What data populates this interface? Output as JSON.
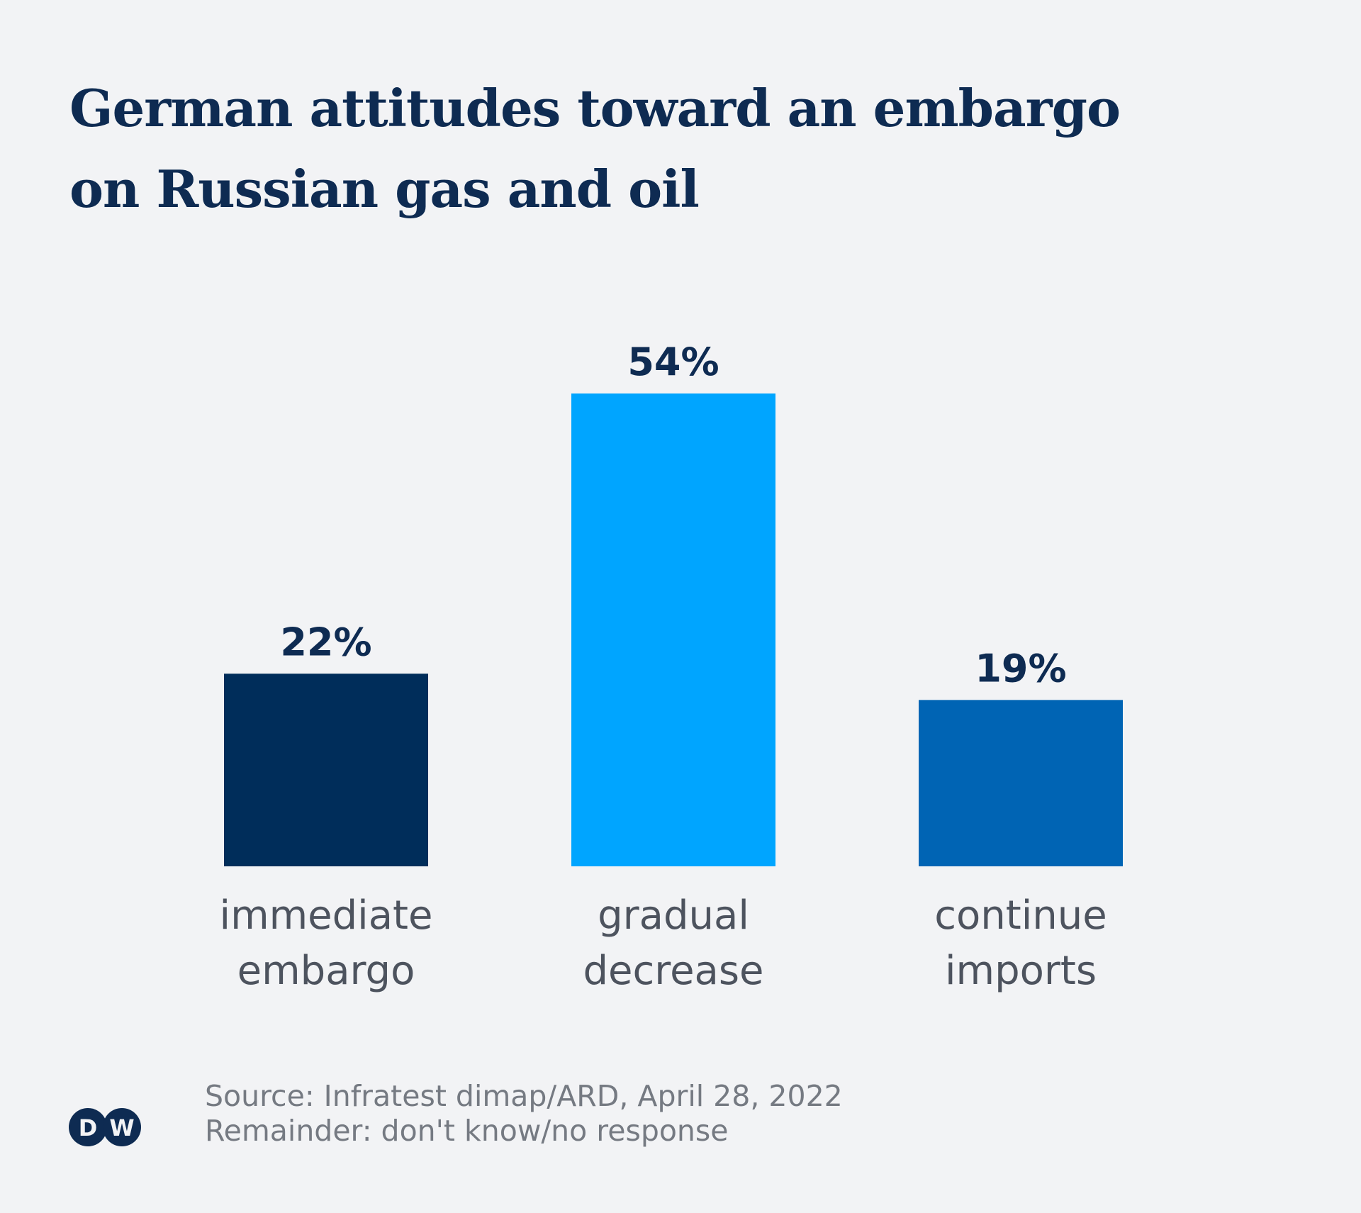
{
  "title_lines": [
    "German attitudes toward an embargo",
    "on Russian gas and oil"
  ],
  "chart_data": {
    "type": "bar",
    "title": "German attitudes toward an embargo on Russian gas and oil",
    "categories": [
      [
        "immediate",
        "embargo"
      ],
      [
        "gradual",
        "decrease"
      ],
      [
        "continue",
        "imports"
      ]
    ],
    "values": [
      22,
      54,
      19
    ],
    "value_labels": [
      "22%",
      "54%",
      "19%"
    ],
    "colors": [
      "#002d5a",
      "#00a5ff",
      "#0064b4"
    ],
    "unit": "%",
    "xlabel": "",
    "ylabel": "",
    "grid": false,
    "legend": "none"
  },
  "footer": {
    "source": "Source: Infratest dimap/ARD, April 28, 2022",
    "note": "Remainder: don't know/no response"
  },
  "logo": {
    "text": "DW",
    "icon": "dw-logo-icon",
    "color": "#0e2b52"
  }
}
